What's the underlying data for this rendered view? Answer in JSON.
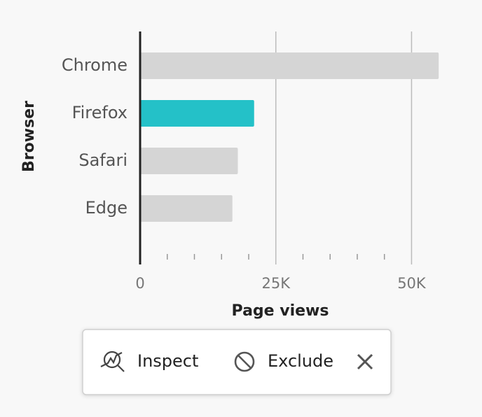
{
  "chart_data": {
    "type": "bar",
    "orientation": "horizontal",
    "x_label": "Page views",
    "y_label": "Browser",
    "categories": [
      "Chrome",
      "Firefox",
      "Safari",
      "Edge"
    ],
    "values": [
      55000,
      21000,
      18000,
      17000
    ],
    "colors": [
      "#d5d5d5",
      "#24c1c8",
      "#d5d5d5",
      "#d5d5d5"
    ],
    "xlim": [
      0,
      55750
    ],
    "xticks": [
      0,
      {
        "value": 25000,
        "label": "25K"
      },
      {
        "value": 50000,
        "label": "50K"
      }
    ],
    "xminorticks": [
      5000,
      10000,
      15000,
      20000,
      30000,
      35000,
      40000,
      45000
    ],
    "grid": true
  },
  "menu": {
    "items": [
      "Inspect",
      "Exclude"
    ]
  }
}
